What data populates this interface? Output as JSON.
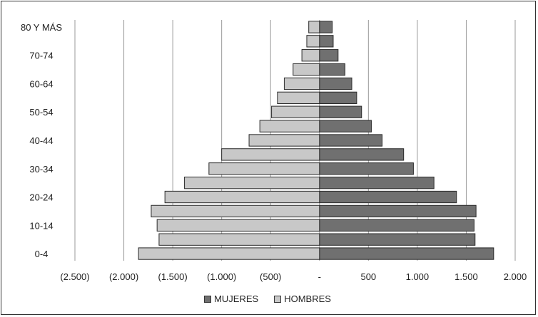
{
  "chart_data": {
    "type": "bar",
    "orientation": "horizontal",
    "layout": "population-pyramid",
    "categories": [
      "0-4",
      "5-9",
      "10-14",
      "15-19",
      "20-24",
      "25-29",
      "30-34",
      "35-39",
      "40-44",
      "45-49",
      "50-54",
      "55-59",
      "60-64",
      "65-69",
      "70-74",
      "75-79",
      "80 Y MÁS"
    ],
    "category_labels_shown": [
      "0-4",
      "10-14",
      "20-24",
      "30-34",
      "40-44",
      "50-54",
      "60-64",
      "70-74",
      "80 Y MÁS"
    ],
    "series": [
      {
        "name": "MUJERES",
        "color": "#707070",
        "values": [
          1780,
          1590,
          1580,
          1600,
          1400,
          1170,
          960,
          860,
          640,
          530,
          430,
          380,
          330,
          260,
          190,
          140,
          130
        ]
      },
      {
        "name": "HOMBRES",
        "color": "#c8c8c8",
        "values": [
          -1850,
          -1640,
          -1660,
          -1720,
          -1580,
          -1380,
          -1130,
          -1000,
          -720,
          -610,
          -490,
          -430,
          -360,
          -270,
          -180,
          -130,
          -110
        ]
      }
    ],
    "xlim": [
      -2500,
      2000
    ],
    "xticks": [
      -2500,
      -2000,
      -1500,
      -1000,
      -500,
      0,
      500,
      1000,
      1500,
      2000
    ],
    "xtick_labels": [
      "(2.500)",
      "(2.000)",
      "(1.500)",
      "(1.000)",
      "(500)",
      "-",
      "500",
      "1.000",
      "1.500",
      "2.000"
    ],
    "grid": "vertical",
    "legend_position": "bottom"
  }
}
